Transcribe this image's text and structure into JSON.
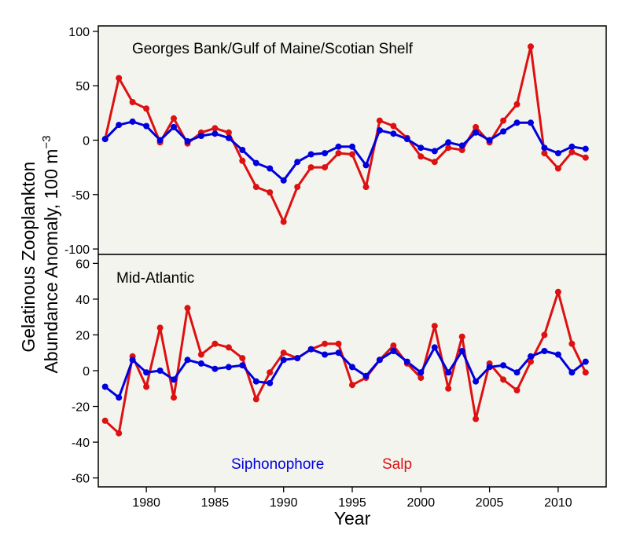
{
  "chart_data": {
    "type": "line",
    "xlabel": "Year",
    "ylabel_line1": "Gelatinous Zooplankton",
    "ylabel_line2": "Abundance Anomaly, 100 m",
    "ylabel_exp": "−3",
    "xlim": [
      1976.5,
      2013.5
    ],
    "x_ticks": [
      1980,
      1985,
      1990,
      1995,
      2000,
      2005,
      2010
    ],
    "x": [
      1977,
      1978,
      1979,
      1980,
      1981,
      1982,
      1983,
      1984,
      1985,
      1986,
      1987,
      1988,
      1989,
      1990,
      1991,
      1992,
      1993,
      1994,
      1995,
      1996,
      1997,
      1998,
      1999,
      2000,
      2001,
      2002,
      2003,
      2004,
      2005,
      2006,
      2007,
      2008,
      2009,
      2010,
      2011,
      2012
    ],
    "legend": [
      {
        "name": "Siphonophore",
        "color": "#0000dd"
      },
      {
        "name": "Salp",
        "color": "#dd1111"
      }
    ],
    "panels": [
      {
        "title": "Georges Bank/Gulf of Maine/Scotian Shelf",
        "ylim": [
          -105,
          105
        ],
        "y_ticks": [
          -100,
          -50,
          0,
          50,
          100
        ],
        "series": [
          {
            "name": "Salp",
            "color": "#dd1111",
            "values": [
              1,
              57,
              35,
              29,
              -2,
              20,
              -3,
              7,
              11,
              7,
              -19,
              -43,
              -48,
              -75,
              -43,
              -25,
              -25,
              -12,
              -13,
              -43,
              18,
              13,
              2,
              -15,
              -20,
              -7,
              -9,
              12,
              -2,
              18,
              33,
              86,
              -12,
              -26,
              -11,
              -16
            ]
          },
          {
            "name": "Siphonophore",
            "color": "#0000dd",
            "values": [
              1,
              14,
              17,
              13,
              0,
              12,
              -1,
              4,
              6,
              2,
              -9,
              -21,
              -26,
              -37,
              -20,
              -13,
              -12,
              -6,
              -6,
              -23,
              9,
              6,
              1,
              -7,
              -10,
              -2,
              -5,
              7,
              0,
              8,
              16,
              16,
              -7,
              -12,
              -6,
              -8
            ]
          }
        ]
      },
      {
        "title": "Mid-Atlantic",
        "ylim": [
          -65,
          65
        ],
        "y_ticks": [
          -60,
          -40,
          -20,
          0,
          20,
          40,
          60
        ],
        "series": [
          {
            "name": "Salp",
            "color": "#dd1111",
            "values": [
              -28,
              -35,
              8,
              -9,
              24,
              -15,
              35,
              9,
              15,
              13,
              7,
              -16,
              -1,
              10,
              7,
              12,
              15,
              15,
              -8,
              -4,
              6,
              14,
              4,
              -4,
              25,
              -10,
              19,
              -27,
              4,
              -5,
              -11,
              5,
              20,
              44,
              15,
              -1
            ]
          },
          {
            "name": "Siphonophore",
            "color": "#0000dd",
            "values": [
              -9,
              -15,
              6,
              -1,
              0,
              -5,
              6,
              4,
              1,
              2,
              3,
              -6,
              -7,
              6,
              7,
              12,
              9,
              10,
              2,
              -3,
              6,
              11,
              5,
              -1,
              13,
              -1,
              11,
              -6,
              2,
              3,
              -1,
              8,
              11,
              9,
              -1,
              5
            ]
          }
        ]
      }
    ]
  }
}
